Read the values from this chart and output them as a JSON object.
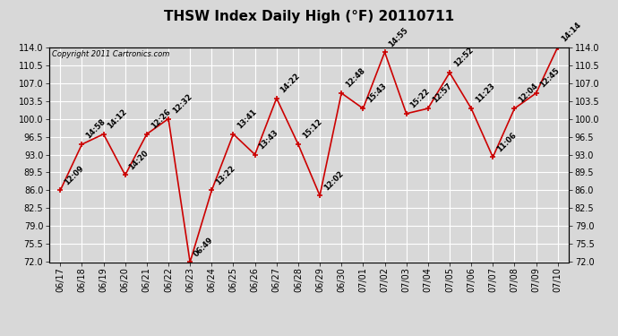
{
  "title": "THSW Index Daily High (°F) 20110711",
  "copyright": "Copyright 2011 Cartronics.com",
  "dates": [
    "06/17",
    "06/18",
    "06/19",
    "06/20",
    "06/21",
    "06/22",
    "06/23",
    "06/24",
    "06/25",
    "06/26",
    "06/27",
    "06/28",
    "06/29",
    "06/30",
    "07/01",
    "07/02",
    "07/03",
    "07/04",
    "07/05",
    "07/06",
    "07/07",
    "07/08",
    "07/09",
    "07/10"
  ],
  "values": [
    86.0,
    95.0,
    97.0,
    89.0,
    97.0,
    100.0,
    72.0,
    86.0,
    97.0,
    93.0,
    104.0,
    95.0,
    85.0,
    105.0,
    102.0,
    113.0,
    101.0,
    102.0,
    109.0,
    102.0,
    92.5,
    102.0,
    105.0,
    114.0
  ],
  "labels": [
    "12:09",
    "14:58",
    "14:12",
    "14:20",
    "12:26",
    "12:32",
    "06:49",
    "13:22",
    "13:41",
    "13:43",
    "14:22",
    "15:12",
    "12:02",
    "12:48",
    "15:43",
    "14:55",
    "15:22",
    "12:57",
    "12:52",
    "11:23",
    "11:06",
    "12:04",
    "12:45",
    "14:14"
  ],
  "line_color": "#cc0000",
  "marker_color": "#cc0000",
  "bg_color": "#d8d8d8",
  "plot_bg_color": "#d8d8d8",
  "grid_color": "#ffffff",
  "ylim": [
    72.0,
    114.0
  ],
  "yticks": [
    72.0,
    75.5,
    79.0,
    82.5,
    86.0,
    89.5,
    93.0,
    96.5,
    100.0,
    103.5,
    107.0,
    110.5,
    114.0
  ],
  "title_fontsize": 11,
  "label_fontsize": 6,
  "tick_fontsize": 7,
  "copyright_fontsize": 6
}
